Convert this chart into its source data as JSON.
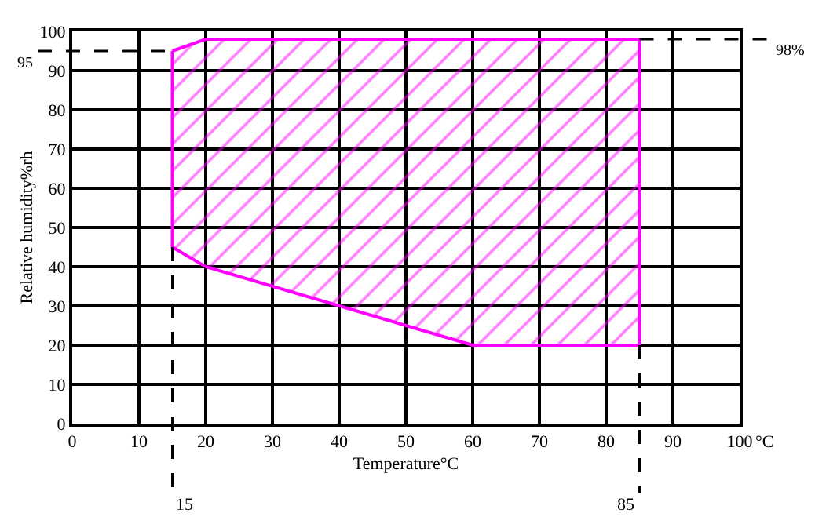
{
  "chart_data": {
    "type": "area",
    "xlabel": "Temperature°C",
    "ylabel": "Relative humidity%rh",
    "xlim": [
      0,
      100
    ],
    "xticks": [
      0,
      10,
      20,
      30,
      40,
      50,
      60,
      70,
      80,
      90,
      100
    ],
    "ylim": [
      0,
      100
    ],
    "yticks": [
      0,
      10,
      20,
      30,
      40,
      50,
      60,
      70,
      80,
      90,
      100
    ],
    "grid": true,
    "series": [
      {
        "color": "#ff00ff",
        "x": [
          15,
          20,
          85,
          85,
          60,
          20,
          15,
          15
        ],
        "values": [
          95,
          98,
          98,
          20,
          20,
          40,
          45,
          95
        ]
      }
    ],
    "ref_lines": [
      {
        "axis": "y",
        "value": 95,
        "label": "95",
        "line_style": "dashed",
        "color": "#000000"
      },
      {
        "axis": "y",
        "value": 98,
        "label": "98%",
        "line_style": "dashed",
        "color": "#000000"
      },
      {
        "axis": "x",
        "value": 15,
        "label": "15",
        "line_style": "dashed",
        "color": "#000000"
      },
      {
        "axis": "x",
        "value": 85,
        "label": "85",
        "line_style": "dashed",
        "color": "#000000"
      }
    ],
    "annotations": [
      "°C"
    ]
  }
}
